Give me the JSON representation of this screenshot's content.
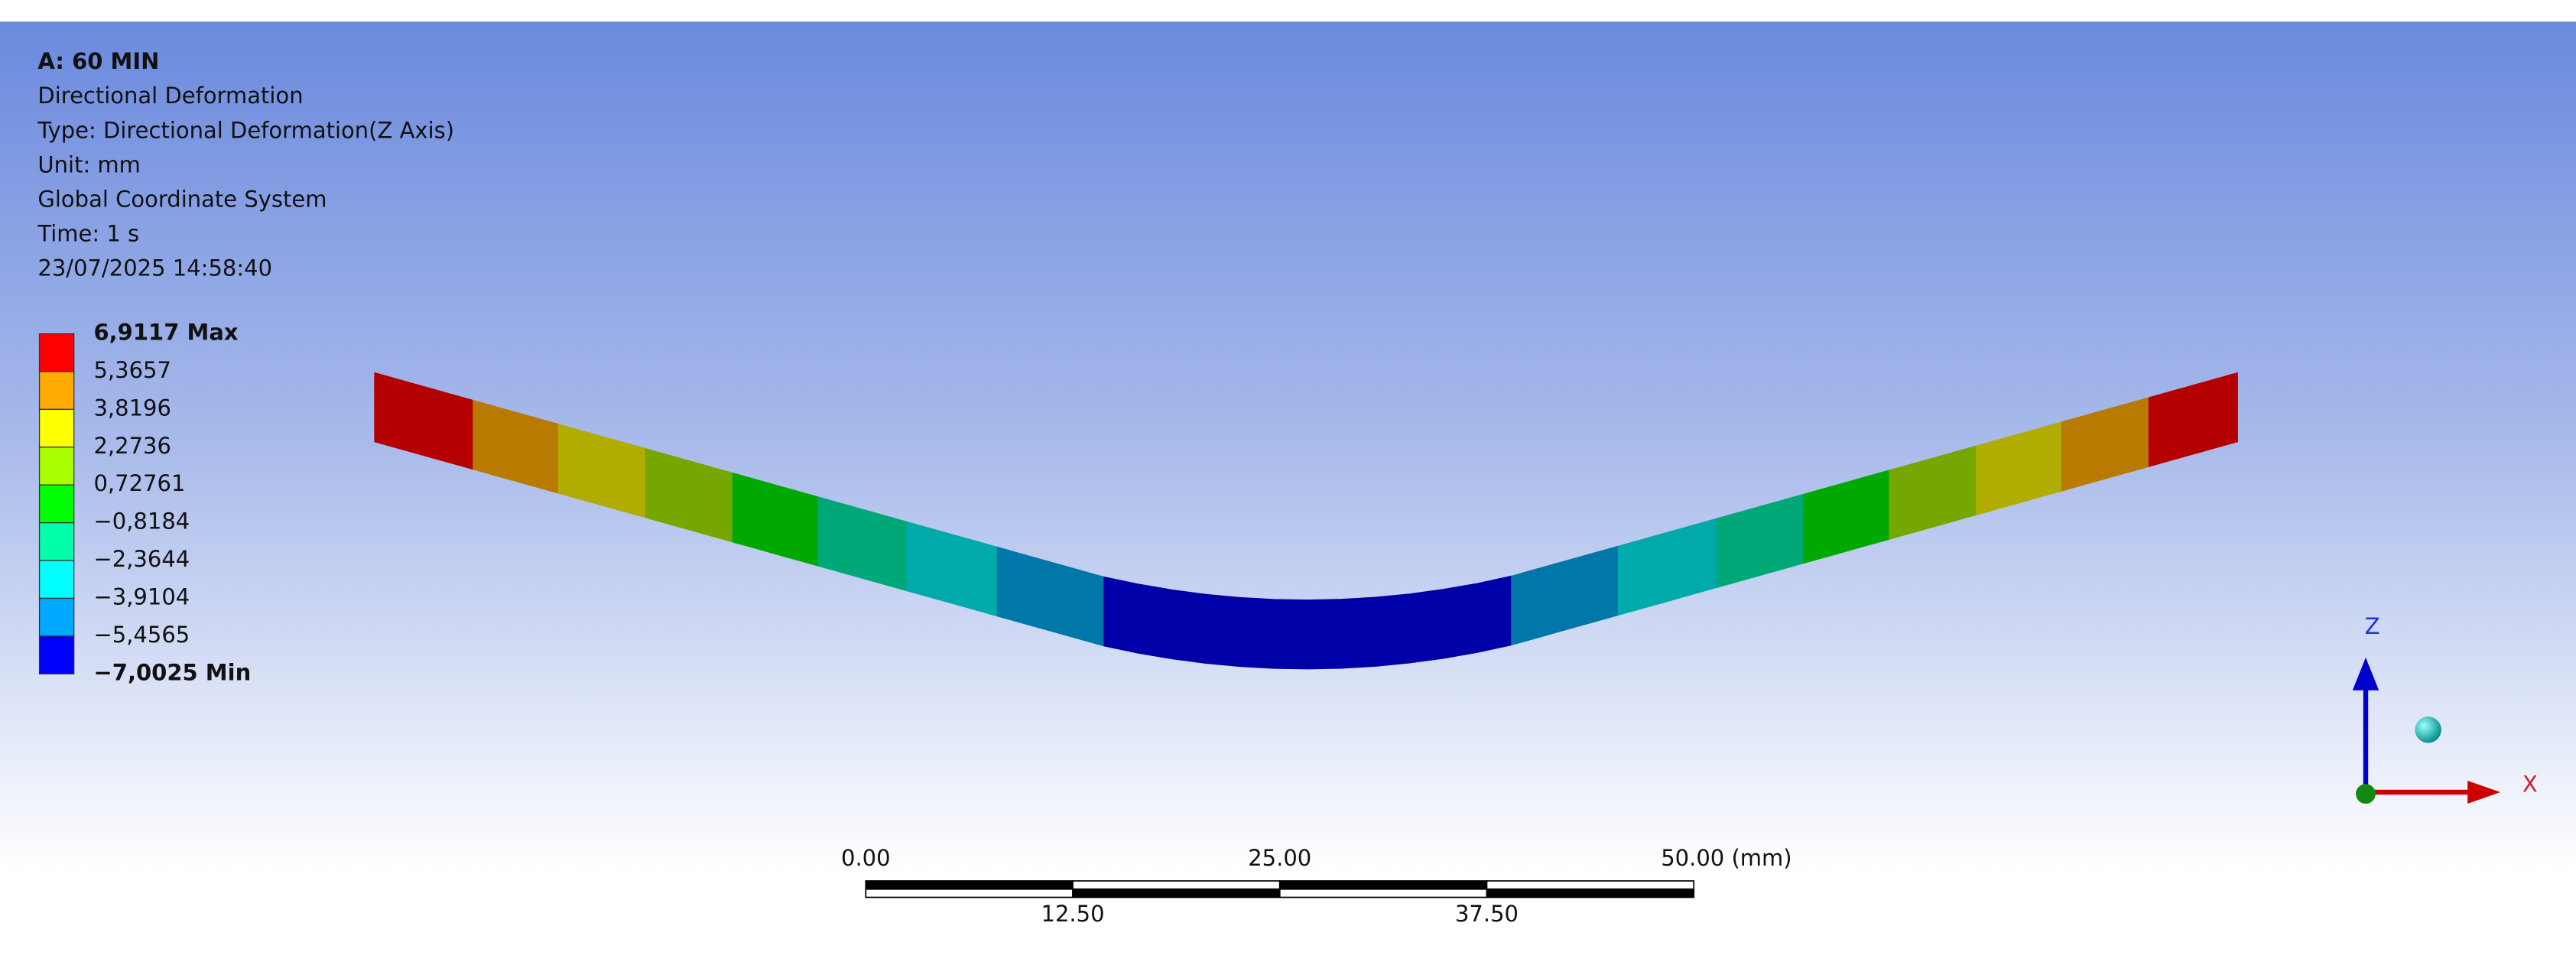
{
  "header": {
    "title": "A: 60 MIN",
    "lines": [
      "Directional Deformation",
      "Type: Directional Deformation(Z Axis)",
      "Unit: mm",
      "Global Coordinate System",
      "Time: 1 s",
      "23/07/2025 14:58:40"
    ]
  },
  "legend": {
    "labels": [
      "6,9117 Max",
      "5,3657",
      "3,8196",
      "2,2736",
      "0,72761",
      "−0,8184",
      "−2,3644",
      "−3,9104",
      "−5,4565",
      "−7,0025 Min"
    ],
    "colors": [
      "#ff0000",
      "#ffaa00",
      "#ffff00",
      "#aaff00",
      "#00ff00",
      "#00ffaa",
      "#00ffff",
      "#00aaff",
      "#0000ff"
    ]
  },
  "scale_bar": {
    "top_labels": [
      "0.00",
      "25.00",
      "50.00 (mm)"
    ],
    "bottom_labels": [
      "12.50",
      "37.50"
    ]
  },
  "triad": {
    "z": "Z",
    "x": "X"
  }
}
